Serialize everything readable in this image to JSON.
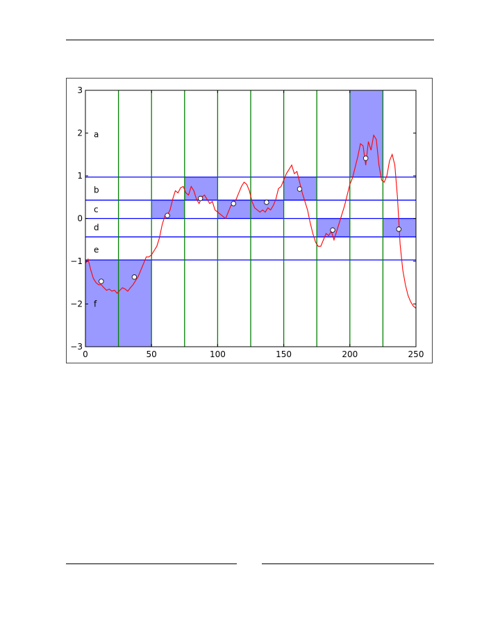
{
  "chart_data": {
    "type": "line",
    "title": "",
    "xlabel": "",
    "ylabel": "",
    "xlim": [
      0,
      250
    ],
    "ylim": [
      -3,
      3
    ],
    "x_ticks": [
      0,
      50,
      100,
      150,
      200,
      250
    ],
    "y_ticks": [
      -3,
      -2,
      -1,
      0,
      1,
      2,
      3
    ],
    "x_tick_labels": [
      "0",
      "50",
      "100",
      "150",
      "200",
      "250"
    ],
    "y_tick_labels": [
      "−3",
      "−2",
      "−1",
      "0",
      "1",
      "2",
      "3"
    ],
    "vertical_gridlines_x": [
      25,
      50,
      75,
      100,
      125,
      150,
      175,
      200,
      225
    ],
    "horizontal_boundaries_y": [
      -0.43,
      0,
      0.43,
      0.97,
      -0.97
    ],
    "band_labels": [
      {
        "text": "a",
        "y": 1.97
      },
      {
        "text": "b",
        "y": 0.67
      },
      {
        "text": "c",
        "y": 0.21
      },
      {
        "text": "d",
        "y": -0.21
      },
      {
        "text": "e",
        "y": -0.73
      },
      {
        "text": "f",
        "y": -2.0
      }
    ],
    "highlighted_cells": [
      {
        "x0": 0,
        "x1": 25,
        "y0": -3,
        "y1": -0.97
      },
      {
        "x0": 25,
        "x1": 50,
        "y0": -3,
        "y1": -0.97
      },
      {
        "x0": 50,
        "x1": 75,
        "y0": 0,
        "y1": 0.43
      },
      {
        "x0": 75,
        "x1": 100,
        "y0": 0.43,
        "y1": 0.97
      },
      {
        "x0": 100,
        "x1": 125,
        "y0": 0,
        "y1": 0.43
      },
      {
        "x0": 125,
        "x1": 150,
        "y0": 0,
        "y1": 0.43
      },
      {
        "x0": 150,
        "x1": 175,
        "y0": 0.43,
        "y1": 0.97
      },
      {
        "x0": 175,
        "x1": 200,
        "y0": -0.43,
        "y1": 0
      },
      {
        "x0": 200,
        "x1": 225,
        "y0": 0.97,
        "y1": 3
      },
      {
        "x0": 225,
        "x1": 250,
        "y0": -0.43,
        "y1": 0
      }
    ],
    "segment_means": [
      {
        "x": 12,
        "y": -1.47
      },
      {
        "x": 37,
        "y": -1.37
      },
      {
        "x": 62,
        "y": 0.07
      },
      {
        "x": 87,
        "y": 0.47
      },
      {
        "x": 112,
        "y": 0.35
      },
      {
        "x": 137,
        "y": 0.38
      },
      {
        "x": 162,
        "y": 0.69
      },
      {
        "x": 187,
        "y": -0.27
      },
      {
        "x": 212,
        "y": 1.41
      },
      {
        "x": 237,
        "y": -0.25
      }
    ],
    "series": [
      {
        "values": [
          [
            0,
            -1.05
          ],
          [
            2,
            -0.95
          ],
          [
            4,
            -1.2
          ],
          [
            6,
            -1.4
          ],
          [
            8,
            -1.5
          ],
          [
            10,
            -1.55
          ],
          [
            12,
            -1.55
          ],
          [
            14,
            -1.62
          ],
          [
            16,
            -1.68
          ],
          [
            18,
            -1.65
          ],
          [
            20,
            -1.7
          ],
          [
            22,
            -1.68
          ],
          [
            24,
            -1.75
          ],
          [
            26,
            -1.68
          ],
          [
            28,
            -1.62
          ],
          [
            30,
            -1.65
          ],
          [
            32,
            -1.7
          ],
          [
            34,
            -1.62
          ],
          [
            36,
            -1.55
          ],
          [
            38,
            -1.45
          ],
          [
            40,
            -1.35
          ],
          [
            42,
            -1.2
          ],
          [
            44,
            -1.05
          ],
          [
            46,
            -0.9
          ],
          [
            48,
            -0.9
          ],
          [
            50,
            -0.85
          ],
          [
            52,
            -0.75
          ],
          [
            54,
            -0.65
          ],
          [
            56,
            -0.45
          ],
          [
            58,
            -0.15
          ],
          [
            60,
            0.05
          ],
          [
            62,
            0.08
          ],
          [
            64,
            0.2
          ],
          [
            66,
            0.45
          ],
          [
            68,
            0.65
          ],
          [
            70,
            0.6
          ],
          [
            72,
            0.72
          ],
          [
            74,
            0.75
          ],
          [
            76,
            0.6
          ],
          [
            78,
            0.55
          ],
          [
            80,
            0.75
          ],
          [
            82,
            0.65
          ],
          [
            84,
            0.45
          ],
          [
            86,
            0.35
          ],
          [
            88,
            0.5
          ],
          [
            90,
            0.55
          ],
          [
            92,
            0.45
          ],
          [
            94,
            0.35
          ],
          [
            96,
            0.4
          ],
          [
            98,
            0.2
          ],
          [
            100,
            0.15
          ],
          [
            102,
            0.1
          ],
          [
            104,
            0.05
          ],
          [
            106,
            0.0
          ],
          [
            108,
            0.15
          ],
          [
            110,
            0.3
          ],
          [
            112,
            0.35
          ],
          [
            114,
            0.45
          ],
          [
            116,
            0.6
          ],
          [
            118,
            0.75
          ],
          [
            120,
            0.85
          ],
          [
            122,
            0.8
          ],
          [
            124,
            0.65
          ],
          [
            126,
            0.4
          ],
          [
            128,
            0.25
          ],
          [
            130,
            0.2
          ],
          [
            132,
            0.15
          ],
          [
            134,
            0.2
          ],
          [
            136,
            0.15
          ],
          [
            138,
            0.25
          ],
          [
            140,
            0.2
          ],
          [
            142,
            0.3
          ],
          [
            144,
            0.45
          ],
          [
            146,
            0.7
          ],
          [
            148,
            0.75
          ],
          [
            150,
            0.9
          ],
          [
            152,
            1.05
          ],
          [
            154,
            1.15
          ],
          [
            156,
            1.25
          ],
          [
            158,
            1.05
          ],
          [
            160,
            1.1
          ],
          [
            162,
            0.85
          ],
          [
            164,
            0.6
          ],
          [
            166,
            0.4
          ],
          [
            168,
            0.2
          ],
          [
            170,
            -0.1
          ],
          [
            172,
            -0.35
          ],
          [
            174,
            -0.55
          ],
          [
            176,
            -0.65
          ],
          [
            178,
            -0.65
          ],
          [
            180,
            -0.5
          ],
          [
            182,
            -0.35
          ],
          [
            184,
            -0.4
          ],
          [
            186,
            -0.3
          ],
          [
            188,
            -0.5
          ],
          [
            190,
            -0.3
          ],
          [
            192,
            -0.1
          ],
          [
            194,
            0.1
          ],
          [
            196,
            0.3
          ],
          [
            198,
            0.55
          ],
          [
            200,
            0.8
          ],
          [
            202,
            0.95
          ],
          [
            204,
            1.2
          ],
          [
            206,
            1.45
          ],
          [
            208,
            1.75
          ],
          [
            210,
            1.7
          ],
          [
            212,
            1.25
          ],
          [
            214,
            1.8
          ],
          [
            216,
            1.6
          ],
          [
            218,
            1.95
          ],
          [
            220,
            1.85
          ],
          [
            222,
            1.25
          ],
          [
            224,
            0.9
          ],
          [
            226,
            0.85
          ],
          [
            228,
            1.0
          ],
          [
            230,
            1.35
          ],
          [
            232,
            1.5
          ],
          [
            234,
            1.25
          ],
          [
            236,
            0.5
          ],
          [
            238,
            -0.6
          ],
          [
            240,
            -1.2
          ],
          [
            242,
            -1.55
          ],
          [
            244,
            -1.8
          ],
          [
            246,
            -1.95
          ],
          [
            248,
            -2.05
          ],
          [
            250,
            -2.1
          ]
        ]
      }
    ]
  }
}
